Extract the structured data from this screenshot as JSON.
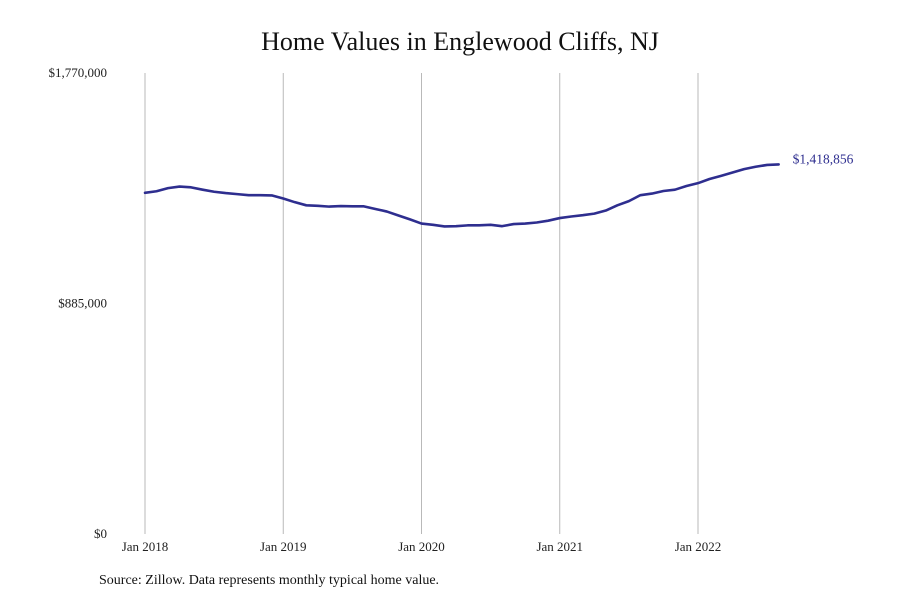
{
  "chart_data": {
    "type": "line",
    "title": "Home Values in Englewood Cliffs, NJ",
    "source": "Source: Zillow. Data represents monthly typical home value.",
    "xlabel": "",
    "ylabel": "",
    "ylim": [
      0,
      1770000
    ],
    "yticks": [
      {
        "value": 0,
        "label": "$0"
      },
      {
        "value": 885000,
        "label": "$885,000"
      },
      {
        "value": 1770000,
        "label": "$1,770,000"
      }
    ],
    "xticks": [
      {
        "value": "2018-01",
        "label": "Jan 2018"
      },
      {
        "value": "2019-01",
        "label": "Jan 2019"
      },
      {
        "value": "2020-01",
        "label": "Jan 2020"
      },
      {
        "value": "2021-01",
        "label": "Jan 2021"
      },
      {
        "value": "2022-01",
        "label": "Jan 2022"
      }
    ],
    "grid": {
      "vertical": true,
      "horizontal": false
    },
    "line_color": "#2e2e8f",
    "end_label": "$1,418,856",
    "series": [
      {
        "x": [
          "2018-01",
          "2018-02",
          "2018-03",
          "2018-04",
          "2018-05",
          "2018-06",
          "2018-07",
          "2018-08",
          "2018-09",
          "2018-10",
          "2018-11",
          "2018-12",
          "2019-01",
          "2019-02",
          "2019-03",
          "2019-04",
          "2019-05",
          "2019-06",
          "2019-07",
          "2019-08",
          "2019-09",
          "2019-10",
          "2019-11",
          "2019-12",
          "2020-01",
          "2020-02",
          "2020-03",
          "2020-04",
          "2020-05",
          "2020-06",
          "2020-07",
          "2020-08",
          "2020-09",
          "2020-10",
          "2020-11",
          "2020-12",
          "2021-01",
          "2021-02",
          "2021-03",
          "2021-04",
          "2021-05",
          "2021-06",
          "2021-07",
          "2021-08",
          "2021-09",
          "2021-10",
          "2021-11",
          "2021-12",
          "2022-01",
          "2022-02",
          "2022-03",
          "2022-04",
          "2022-05",
          "2022-06",
          "2022-07",
          "2022-08"
        ],
        "values": [
          1310000,
          1316000,
          1328000,
          1334000,
          1331000,
          1322000,
          1314000,
          1309000,
          1305000,
          1301000,
          1301000,
          1300000,
          1288000,
          1274000,
          1262000,
          1260000,
          1257000,
          1259000,
          1258000,
          1258000,
          1248000,
          1238000,
          1223000,
          1208000,
          1192000,
          1187000,
          1181000,
          1182000,
          1185000,
          1185000,
          1187000,
          1182000,
          1190000,
          1192000,
          1196000,
          1203000,
          1213000,
          1219000,
          1224000,
          1230000,
          1242000,
          1262000,
          1278000,
          1301000,
          1307000,
          1317000,
          1322000,
          1336000,
          1347000,
          1363000,
          1375000,
          1388000,
          1401000,
          1410000,
          1417000,
          1418856
        ]
      }
    ]
  }
}
